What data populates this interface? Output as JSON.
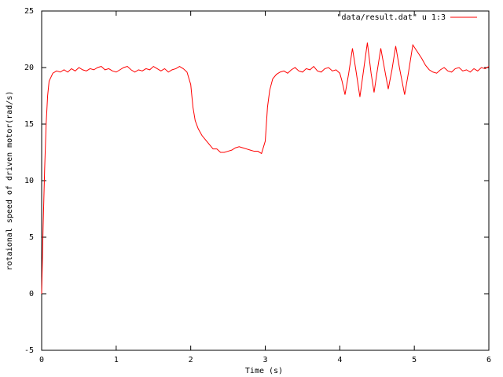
{
  "chart_data": {
    "type": "line",
    "xlabel": "Time (s)",
    "ylabel": "rotaional speed of driven motor(rad/s)",
    "x": [
      0,
      0.02,
      0.04,
      0.06,
      0.08,
      0.1,
      0.15,
      0.2,
      0.25,
      0.3,
      0.35,
      0.4,
      0.45,
      0.5,
      0.55,
      0.6,
      0.65,
      0.7,
      0.75,
      0.8,
      0.85,
      0.9,
      0.95,
      1,
      1.05,
      1.1,
      1.15,
      1.2,
      1.25,
      1.3,
      1.35,
      1.4,
      1.45,
      1.5,
      1.55,
      1.6,
      1.65,
      1.7,
      1.75,
      1.8,
      1.85,
      1.9,
      1.95,
      2,
      2.03,
      2.06,
      2.1,
      2.15,
      2.2,
      2.25,
      2.3,
      2.35,
      2.4,
      2.45,
      2.5,
      2.55,
      2.6,
      2.65,
      2.7,
      2.75,
      2.8,
      2.85,
      2.9,
      2.95,
      3,
      3.03,
      3.06,
      3.1,
      3.15,
      3.2,
      3.25,
      3.3,
      3.35,
      3.4,
      3.45,
      3.5,
      3.55,
      3.6,
      3.65,
      3.7,
      3.75,
      3.8,
      3.85,
      3.9,
      3.95,
      4,
      4.03,
      4.07,
      4.12,
      4.17,
      4.22,
      4.27,
      4.32,
      4.37,
      4.42,
      4.46,
      4.5,
      4.55,
      4.6,
      4.65,
      4.7,
      4.75,
      4.8,
      4.87,
      4.92,
      4.98,
      5.05,
      5.1,
      5.15,
      5.2,
      5.25,
      5.3,
      5.35,
      5.4,
      5.45,
      5.5,
      5.55,
      5.6,
      5.65,
      5.7,
      5.75,
      5.8,
      5.85,
      5.9,
      5.95,
      6
    ],
    "series": [
      {
        "name": "\"data/result.dat\" u 1:3",
        "color": "#ff0000",
        "values": [
          0,
          6,
          11,
          15,
          17.5,
          18.8,
          19.5,
          19.7,
          19.6,
          19.8,
          19.6,
          19.9,
          19.7,
          20.0,
          19.8,
          19.7,
          19.9,
          19.8,
          20.0,
          20.1,
          19.8,
          19.9,
          19.7,
          19.6,
          19.8,
          20.0,
          20.1,
          19.8,
          19.6,
          19.8,
          19.7,
          19.9,
          19.8,
          20.1,
          19.9,
          19.7,
          19.9,
          19.6,
          19.8,
          19.9,
          20.1,
          19.9,
          19.6,
          18.5,
          16.5,
          15.3,
          14.6,
          14.0,
          13.6,
          13.2,
          12.8,
          12.8,
          12.5,
          12.5,
          12.6,
          12.7,
          12.9,
          13.0,
          12.9,
          12.8,
          12.7,
          12.6,
          12.6,
          12.4,
          13.5,
          16.5,
          18.0,
          19.0,
          19.4,
          19.6,
          19.7,
          19.5,
          19.8,
          20.0,
          19.7,
          19.6,
          19.9,
          19.8,
          20.1,
          19.7,
          19.6,
          19.9,
          20.0,
          19.7,
          19.8,
          19.5,
          18.8,
          17.6,
          19.5,
          21.7,
          19.6,
          17.4,
          19.8,
          22.2,
          19.5,
          17.8,
          19.6,
          21.7,
          19.9,
          18.1,
          19.8,
          21.9,
          20.0,
          17.6,
          19.5,
          22.0,
          21.3,
          20.8,
          20.2,
          19.8,
          19.6,
          19.5,
          19.8,
          20.0,
          19.7,
          19.6,
          19.9,
          20.0,
          19.7,
          19.8,
          19.6,
          19.9,
          19.7,
          20.0,
          19.9,
          20.1
        ]
      }
    ],
    "xlim": [
      0,
      6
    ],
    "xticks": [
      0,
      1,
      2,
      3,
      4,
      5,
      6
    ],
    "ylim": [
      -5,
      25
    ],
    "yticks": [
      -5,
      0,
      5,
      10,
      15,
      20,
      25
    ],
    "grid": false,
    "legend": "top-right"
  }
}
